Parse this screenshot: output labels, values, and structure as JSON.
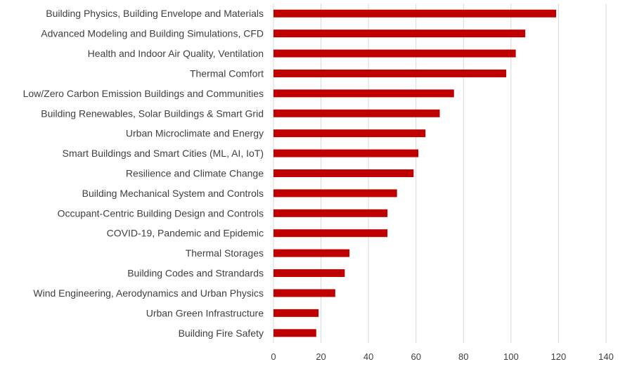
{
  "chart_data": {
    "type": "bar",
    "orientation": "horizontal",
    "title": "",
    "xlabel": "",
    "ylabel": "",
    "categories": [
      "Building Physics, Building Envelope and Materials",
      "Advanced Modeling and Building Simulations, CFD",
      "Health and Indoor Air Quality, Ventilation",
      "Thermal Comfort",
      "Low/Zero Carbon Emission Buildings and Communities",
      "Building Renewables, Solar Buildings & Smart Grid",
      "Urban Microclimate and Energy",
      "Smart Buildings and Smart Cities (ML, AI, IoT)",
      "Resilience and Climate Change",
      "Building Mechanical System and Controls",
      "Occupant-Centric Building Design and Controls",
      "COVID-19, Pandemic and Epidemic",
      "Thermal Storages",
      "Building Codes and Strandards",
      "Wind Engineering, Aerodynamics and Urban Physics",
      "Urban Green Infrastructure",
      "Building Fire Safety"
    ],
    "values": [
      119,
      106,
      102,
      98,
      76,
      70,
      64,
      61,
      59,
      52,
      48,
      48,
      32,
      30,
      26,
      19,
      18
    ],
    "xlim": [
      0,
      140
    ],
    "xticks": [
      "0",
      "20",
      "40",
      "60",
      "80",
      "100",
      "120",
      "140"
    ],
    "grid": "vertical",
    "legend": "none",
    "bar_color": "#c00000",
    "grid_color": "#d9d9d9",
    "label_color": "#404040"
  }
}
